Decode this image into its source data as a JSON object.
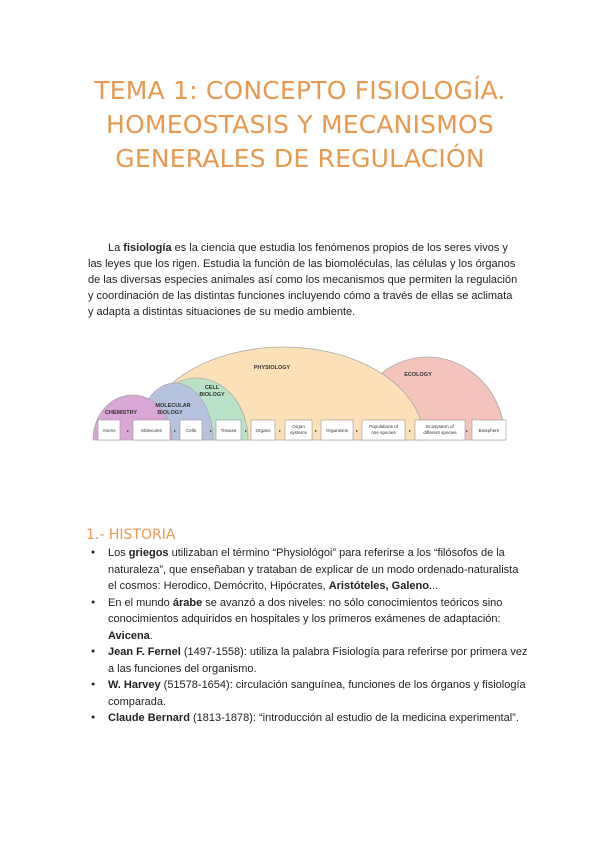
{
  "title_lines": [
    "TEMA 1: CONCEPTO FISIOLOGÍA.",
    "HOMEOSTASIS Y MECANISMOS",
    "GENERALES DE REGULACIÓN"
  ],
  "intro": {
    "pre": "La ",
    "bold": "fisiología",
    "post": " es la ciencia que estudia los fenómenos propios de los seres vivos y las leyes que los rigen. Estudia la función de las biomoléculas, las células y los órganos de las diversas especies animales así como los mecanismos que permiten la regulación y coordinación de las distintas funciones incluyendo cómo a través de ellas se aclimata y adapta a distintas situaciones de su medio ambiente."
  },
  "diagram": {
    "fields": [
      "CHEMISTRY",
      "MOLECULAR",
      "BIOLOGY",
      "CELL",
      "BIOLOGY",
      "PHYSIOLOGY",
      "ECOLOGY"
    ],
    "boxes": [
      "Atoms",
      "Molecules",
      "Cells",
      "Tissues",
      "Organs",
      "Organ",
      "systems",
      "Organisms",
      "Populations of",
      "one species",
      "Ecosystem of",
      "different species",
      "Biosphere"
    ],
    "colors": {
      "chemistry": "#d9a6d6",
      "molecular": "#b7c3de",
      "cell": "#b9e2c9",
      "physiology": "#fbe0b8",
      "ecology": "#f4c4bc"
    }
  },
  "section": {
    "heading": "1.- HISTORIA"
  },
  "bullets": [
    {
      "parts": [
        {
          "t": "Los "
        },
        {
          "b": "griegos"
        },
        {
          "t": " utilizaban el término “Physiológoi” para referirse a los “filósofos de la naturaleza”, que enseñaban y trataban de explicar de un modo ordenado-naturalista el cosmos: Herodico, Demócrito, Hipócrates, "
        },
        {
          "b": "Aristóteles, Galeno"
        },
        {
          "t": "..."
        }
      ]
    },
    {
      "parts": [
        {
          "t": "En el mundo "
        },
        {
          "b": "árabe"
        },
        {
          "t": " se avanzó a dos niveles: no sólo conocimientos teóricos sino conocimientos adquiridos en hospitales y los primeros exámenes de adaptación: "
        },
        {
          "b": "Avicena"
        },
        {
          "t": "."
        }
      ]
    },
    {
      "parts": [
        {
          "b": "Jean F. Fernel"
        },
        {
          "t": " (1497-1558): utiliza la palabra Fisiología para referirse por primera vez a las funciones del organismo."
        }
      ]
    },
    {
      "parts": [
        {
          "b": "W. Harvey"
        },
        {
          "t": " (51578-1654): circulación sanguínea, funciones de los órganos y fisiología comparada."
        }
      ]
    },
    {
      "parts": [
        {
          "b": "Claude Bernard"
        },
        {
          "t": " (1813-1878): “introducción al estudio de la medicina experimental”."
        }
      ]
    }
  ]
}
